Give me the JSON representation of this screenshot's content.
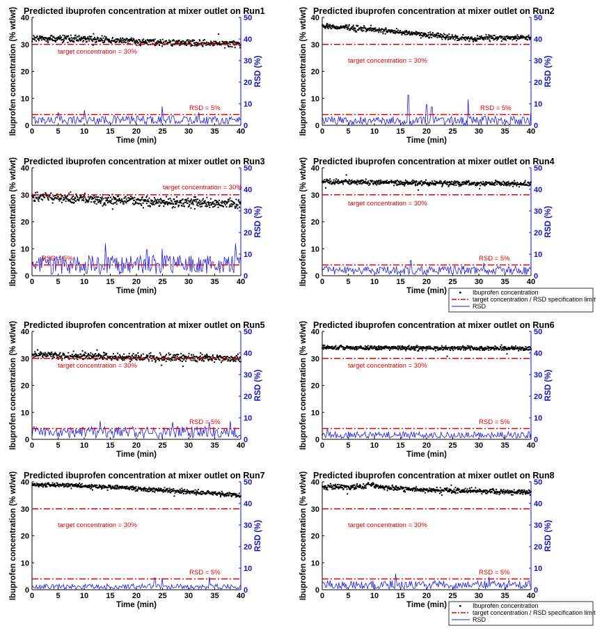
{
  "figure": {
    "legend_entries": [
      "Ibuprofen concentration",
      "target concentration / RSD specification limit",
      "RSD"
    ]
  },
  "colors": {
    "concentration": "#000000",
    "limit": "#e00000",
    "rsd": "#1a1ae6"
  },
  "chart_data": [
    {
      "type": "scatter",
      "title": "Predicted ibuprofen concentration at mixer outlet on Run1",
      "xlabel": "Time (min)",
      "ylabel": "Ibuprofen concentration (% wt/wt)",
      "y2label": "RSD (%)",
      "xlim": [
        0,
        40
      ],
      "ylim": [
        0,
        40
      ],
      "y2lim": [
        0,
        50
      ],
      "xticks": [
        0,
        5,
        10,
        15,
        20,
        25,
        30,
        35,
        40
      ],
      "yticks": [
        0,
        10,
        20,
        30,
        40
      ],
      "y2ticks": [
        0,
        10,
        20,
        30,
        40,
        50
      ],
      "target_concentration": 30,
      "rsd_limit": 5,
      "target_label": "target concentration = 30%",
      "rsd_label": "RSD = 5%",
      "series": [
        {
          "name": "Ibuprofen concentration",
          "kind": "points",
          "axis": "left",
          "trend": [
            [
              0,
              32.3
            ],
            [
              10,
              32.0
            ],
            [
              20,
              31.0
            ],
            [
              30,
              30.5
            ],
            [
              40,
              30.2
            ]
          ],
          "spread": 1.3
        },
        {
          "name": "RSD",
          "kind": "line",
          "axis": "right",
          "baseline": 2.5,
          "spread": 2.0,
          "peaks": [
            [
              5,
              6
            ],
            [
              10,
              7
            ],
            [
              25,
              8.8
            ],
            [
              32,
              6
            ]
          ]
        }
      ],
      "legend": false
    },
    {
      "type": "scatter",
      "title": "Predicted ibuprofen concentration at mixer outlet on Run2",
      "xlabel": "Time (min)",
      "ylabel": "Ibuprofen concentration (% wt/wt)",
      "y2label": "RSD (%)",
      "xlim": [
        0,
        40
      ],
      "ylim": [
        0,
        40
      ],
      "y2lim": [
        0,
        50
      ],
      "xticks": [
        0,
        5,
        10,
        15,
        20,
        25,
        30,
        35,
        40
      ],
      "yticks": [
        0,
        10,
        20,
        30,
        40
      ],
      "y2ticks": [
        0,
        10,
        20,
        30,
        40,
        50
      ],
      "target_concentration": 30,
      "rsd_limit": 5,
      "target_label": "target concentration = 30%",
      "rsd_label": "RSD = 5%",
      "series": [
        {
          "name": "Ibuprofen concentration",
          "kind": "points",
          "axis": "left",
          "trend": [
            [
              0,
              36.8
            ],
            [
              10,
              35.5
            ],
            [
              20,
              33.5
            ],
            [
              27,
              32.3
            ],
            [
              40,
              32.5
            ]
          ],
          "spread": 1.1
        },
        {
          "name": "RSD",
          "kind": "line",
          "axis": "right",
          "baseline": 2.2,
          "spread": 2.0,
          "peaks": [
            [
              16.5,
              14
            ],
            [
              20,
              9.5
            ],
            [
              21,
              8.5
            ],
            [
              28,
              12
            ],
            [
              40,
              7
            ]
          ]
        }
      ],
      "legend": false
    },
    {
      "type": "scatter",
      "title": "Predicted ibuprofen concentration at mixer outlet on Run3",
      "xlabel": "Time (min)",
      "ylabel": "Ibuprofen concentration (% wt/wt)",
      "y2label": "RSD (%)",
      "xlim": [
        0,
        40
      ],
      "ylim": [
        0,
        40
      ],
      "y2lim": [
        0,
        50
      ],
      "xticks": [
        0,
        5,
        10,
        15,
        20,
        25,
        30,
        35,
        40
      ],
      "yticks": [
        0,
        10,
        20,
        30,
        40
      ],
      "y2ticks": [
        0,
        10,
        20,
        30,
        40,
        50
      ],
      "target_concentration": 30,
      "rsd_limit": 5,
      "target_label": "target concentration = 30%",
      "rsd_label": "RSD = 5%",
      "series": [
        {
          "name": "Ibuprofen concentration",
          "kind": "points",
          "axis": "left",
          "trend": [
            [
              0,
              29.5
            ],
            [
              10,
              28.5
            ],
            [
              20,
              27.8
            ],
            [
              30,
              27.0
            ],
            [
              40,
              26.5
            ]
          ],
          "spread": 1.9
        },
        {
          "name": "RSD",
          "kind": "line",
          "axis": "right",
          "baseline": 5.0,
          "spread": 4.5,
          "peaks": [
            [
              14,
              15
            ],
            [
              22,
              12
            ],
            [
              25,
              12.5
            ],
            [
              39,
              15
            ]
          ]
        }
      ],
      "legend": false
    },
    {
      "type": "scatter",
      "title": "Predicted ibuprofen concentration at mixer outlet on Run4",
      "xlabel": "Time (min)",
      "ylabel": "Ibuprofen concentration (% wt/wt)",
      "y2label": "RSD (%)",
      "xlim": [
        0,
        40
      ],
      "ylim": [
        0,
        40
      ],
      "y2lim": [
        0,
        50
      ],
      "xticks": [
        0,
        5,
        10,
        15,
        20,
        25,
        30,
        35,
        40
      ],
      "yticks": [
        0,
        10,
        20,
        30,
        40
      ],
      "y2ticks": [
        0,
        10,
        20,
        30,
        40,
        50
      ],
      "target_concentration": 30,
      "rsd_limit": 5,
      "target_label": "target concentration = 30%",
      "rsd_label": "RSD = 5%",
      "series": [
        {
          "name": "Ibuprofen concentration",
          "kind": "points",
          "axis": "left",
          "trend": [
            [
              0,
              35.0
            ],
            [
              10,
              34.5
            ],
            [
              20,
              34.3
            ],
            [
              30,
              34.2
            ],
            [
              40,
              34.0
            ]
          ],
          "spread": 1.0
        },
        {
          "name": "RSD",
          "kind": "line",
          "axis": "right",
          "baseline": 2.5,
          "spread": 2.0,
          "peaks": [
            [
              17,
              7
            ],
            [
              31,
              6
            ]
          ]
        }
      ],
      "legend": true
    },
    {
      "type": "scatter",
      "title": "Predicted ibuprofen concentration at mixer outlet on Run5",
      "xlabel": "Time (min)",
      "ylabel": "Ibuprofen concentration (% wt/wt)",
      "y2label": "RSD (%)",
      "xlim": [
        0,
        40
      ],
      "ylim": [
        0,
        40
      ],
      "y2lim": [
        0,
        50
      ],
      "xticks": [
        0,
        5,
        10,
        15,
        20,
        25,
        30,
        35,
        40
      ],
      "yticks": [
        0,
        10,
        20,
        30,
        40
      ],
      "y2ticks": [
        0,
        10,
        20,
        30,
        40,
        50
      ],
      "target_concentration": 30,
      "rsd_limit": 5,
      "target_label": "target concentration = 30%",
      "rsd_label": "RSD = 5%",
      "series": [
        {
          "name": "Ibuprofen concentration",
          "kind": "points",
          "axis": "left",
          "trend": [
            [
              0,
              31.5
            ],
            [
              10,
              30.8
            ],
            [
              20,
              30.3
            ],
            [
              30,
              30.2
            ],
            [
              40,
              30.0
            ]
          ],
          "spread": 1.4
        },
        {
          "name": "RSD",
          "kind": "line",
          "axis": "right",
          "baseline": 3.2,
          "spread": 2.8,
          "peaks": [
            [
              13,
              8.5
            ],
            [
              27,
              8
            ],
            [
              34,
              8
            ],
            [
              38,
              8.5
            ]
          ]
        }
      ],
      "legend": false
    },
    {
      "type": "scatter",
      "title": "Predicted ibuprofen concentration at mixer outlet on Run6",
      "xlabel": "Time (min)",
      "ylabel": "Ibuprofen concentration (% wt/wt)",
      "y2label": "RSD (%)",
      "xlim": [
        0,
        40
      ],
      "ylim": [
        0,
        40
      ],
      "y2lim": [
        0,
        50
      ],
      "xticks": [
        0,
        5,
        10,
        15,
        20,
        25,
        30,
        35,
        40
      ],
      "yticks": [
        0,
        10,
        20,
        30,
        40
      ],
      "y2ticks": [
        0,
        10,
        20,
        30,
        40,
        50
      ],
      "target_concentration": 30,
      "rsd_limit": 5,
      "target_label": "target concentration = 30%",
      "rsd_label": "RSD = 5%",
      "series": [
        {
          "name": "Ibuprofen concentration",
          "kind": "points",
          "axis": "left",
          "trend": [
            [
              0,
              34.0
            ],
            [
              10,
              34.0
            ],
            [
              20,
              33.8
            ],
            [
              30,
              33.7
            ],
            [
              40,
              33.8
            ]
          ],
          "spread": 0.8
        },
        {
          "name": "RSD",
          "kind": "line",
          "axis": "right",
          "baseline": 2.0,
          "spread": 1.6,
          "peaks": [
            [
              1,
              5
            ]
          ]
        }
      ],
      "legend": false
    },
    {
      "type": "scatter",
      "title": "Predicted ibuprofen concentration at mixer outlet on Run7",
      "xlabel": "Time (min)",
      "ylabel": "Ibuprofen concentration (% wt/wt)",
      "y2label": "RSD (%)",
      "xlim": [
        0,
        40
      ],
      "ylim": [
        0,
        40
      ],
      "y2lim": [
        0,
        50
      ],
      "xticks": [
        0,
        5,
        10,
        15,
        20,
        25,
        30,
        35,
        40
      ],
      "yticks": [
        0,
        10,
        20,
        30,
        40
      ],
      "y2ticks": [
        0,
        10,
        20,
        30,
        40,
        50
      ],
      "target_concentration": 30,
      "rsd_limit": 5,
      "target_label": "target concentration = 30%",
      "rsd_label": "RSD = 5%",
      "series": [
        {
          "name": "Ibuprofen concentration",
          "kind": "points",
          "axis": "left",
          "trend": [
            [
              0,
              39.0
            ],
            [
              10,
              38.5
            ],
            [
              20,
              37.5
            ],
            [
              30,
              36.3
            ],
            [
              40,
              35.0
            ]
          ],
          "spread": 0.9
        },
        {
          "name": "RSD",
          "kind": "line",
          "axis": "right",
          "baseline": 1.5,
          "spread": 1.2,
          "peaks": [
            [
              23.5,
              5.5
            ],
            [
              25,
              5.5
            ],
            [
              34,
              6
            ]
          ]
        }
      ],
      "legend": false
    },
    {
      "type": "scatter",
      "title": "Predicted ibuprofen concentration at mixer outlet on Run8",
      "xlabel": "Time (min)",
      "ylabel": "Ibuprofen concentration (% wt/wt)",
      "y2label": "RSD (%)",
      "xlim": [
        0,
        40
      ],
      "ylim": [
        0,
        40
      ],
      "y2lim": [
        0,
        50
      ],
      "xticks": [
        0,
        5,
        10,
        15,
        20,
        25,
        30,
        35,
        40
      ],
      "yticks": [
        0,
        10,
        20,
        30,
        40
      ],
      "y2ticks": [
        0,
        10,
        20,
        30,
        40,
        50
      ],
      "target_concentration": 30,
      "rsd_limit": 5,
      "target_label": "target concentration = 30%",
      "rsd_label": "RSD = 5%",
      "series": [
        {
          "name": "Ibuprofen concentration",
          "kind": "points",
          "axis": "left",
          "trend": [
            [
              0,
              38.0
            ],
            [
              8,
              38.2
            ],
            [
              9,
              39.5
            ],
            [
              11,
              38.0
            ],
            [
              20,
              37.0
            ],
            [
              30,
              36.5
            ],
            [
              40,
              36.0
            ]
          ],
          "spread": 1.0
        },
        {
          "name": "RSD",
          "kind": "line",
          "axis": "right",
          "baseline": 2.3,
          "spread": 2.0,
          "peaks": [
            [
              14,
              7.5
            ],
            [
              32,
              6
            ]
          ]
        }
      ],
      "legend": true
    }
  ]
}
